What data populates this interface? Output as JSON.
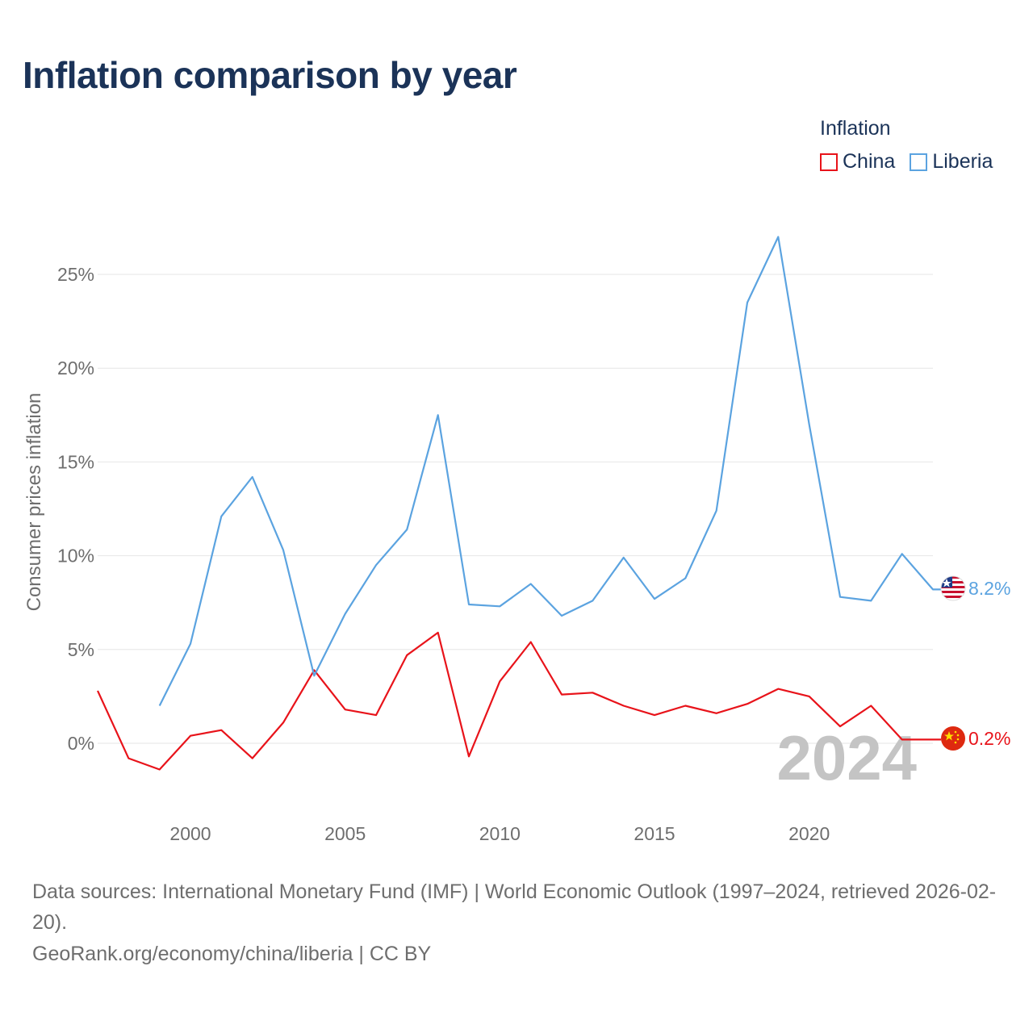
{
  "title": "Inflation comparison by year",
  "legend": {
    "title": "Inflation",
    "items": [
      {
        "name": "China",
        "color": "#e8131a"
      },
      {
        "name": "Liberia",
        "color": "#5ba3e0"
      }
    ]
  },
  "footer": {
    "sources": "Data sources: International Monetary Fund (IMF) | World Economic Outlook (1997–2024, retrieved 2026-02-20).",
    "link": "GeoRank.org/economy/china/liberia | CC BY"
  },
  "chart_data": {
    "type": "line",
    "title": "Inflation comparison by year",
    "xlabel": "",
    "ylabel": "Consumer prices inflation",
    "xlim": [
      1997,
      2024
    ],
    "ylim": [
      -4,
      30
    ],
    "x_ticks": [
      2000,
      2005,
      2010,
      2015,
      2020
    ],
    "y_ticks": [
      0,
      5,
      10,
      15,
      20,
      25
    ],
    "y_tick_labels": [
      "0%",
      "5%",
      "10%",
      "15%",
      "20%",
      "25%"
    ],
    "grid": true,
    "legend_position": "top-right",
    "year_watermark": "2024",
    "series": [
      {
        "name": "China",
        "color": "#e8131a",
        "end_label": "0.2%",
        "x": [
          1997,
          1998,
          1999,
          2000,
          2001,
          2002,
          2003,
          2004,
          2005,
          2006,
          2007,
          2008,
          2009,
          2010,
          2011,
          2012,
          2013,
          2014,
          2015,
          2016,
          2017,
          2018,
          2019,
          2020,
          2021,
          2022,
          2023,
          2024
        ],
        "values": [
          2.8,
          -0.8,
          -1.4,
          0.4,
          0.7,
          -0.8,
          1.1,
          3.9,
          1.8,
          1.5,
          4.7,
          5.9,
          -0.7,
          3.3,
          5.4,
          2.6,
          2.7,
          2.0,
          1.5,
          2.0,
          1.6,
          2.1,
          2.9,
          2.5,
          0.9,
          2.0,
          0.2,
          0.2
        ]
      },
      {
        "name": "Liberia",
        "color": "#5ba3e0",
        "end_label": "8.2%",
        "x": [
          1999,
          2000,
          2001,
          2002,
          2003,
          2004,
          2005,
          2006,
          2007,
          2008,
          2009,
          2010,
          2011,
          2012,
          2013,
          2014,
          2015,
          2016,
          2017,
          2018,
          2019,
          2020,
          2021,
          2022,
          2023,
          2024
        ],
        "values": [
          2.0,
          5.3,
          12.1,
          14.2,
          10.3,
          3.6,
          6.9,
          9.5,
          11.4,
          17.5,
          7.4,
          7.3,
          8.5,
          6.8,
          7.6,
          9.9,
          7.7,
          8.8,
          12.4,
          23.5,
          27.0,
          17.0,
          7.8,
          7.6,
          10.1,
          8.2
        ]
      }
    ]
  }
}
